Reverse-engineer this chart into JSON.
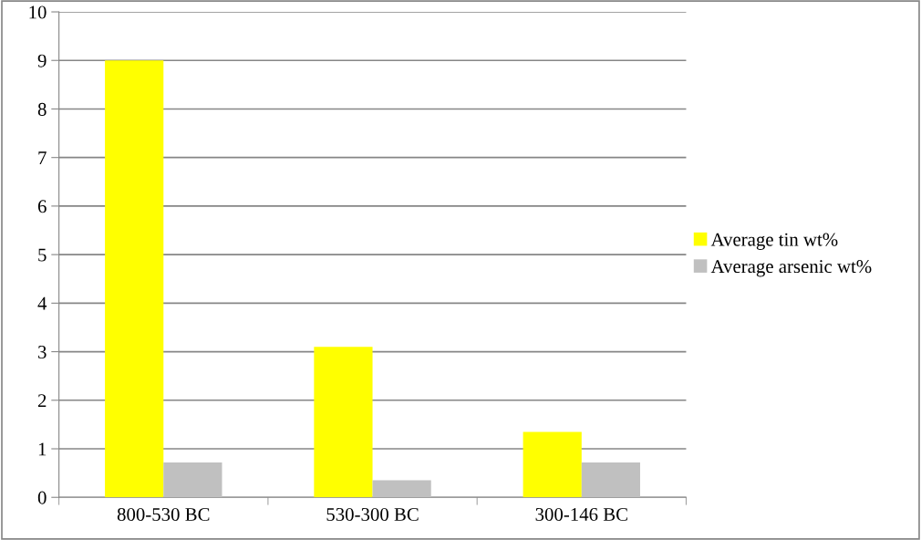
{
  "chart_data": {
    "type": "bar",
    "categories": [
      "800-530 BC",
      "530-300 BC",
      "300-146 BC"
    ],
    "series": [
      {
        "name": "Average tin wt%",
        "color": "#ffff00",
        "values": [
          9,
          3.1,
          1.35
        ]
      },
      {
        "name": "Average arsenic wt%",
        "color": "#c0c0c0",
        "values": [
          0.72,
          0.35,
          0.72
        ]
      }
    ],
    "ylim": [
      0,
      10
    ],
    "yticks": [
      0,
      1,
      2,
      3,
      4,
      5,
      6,
      7,
      8,
      9,
      10
    ],
    "grid": "y",
    "legend": "right"
  }
}
